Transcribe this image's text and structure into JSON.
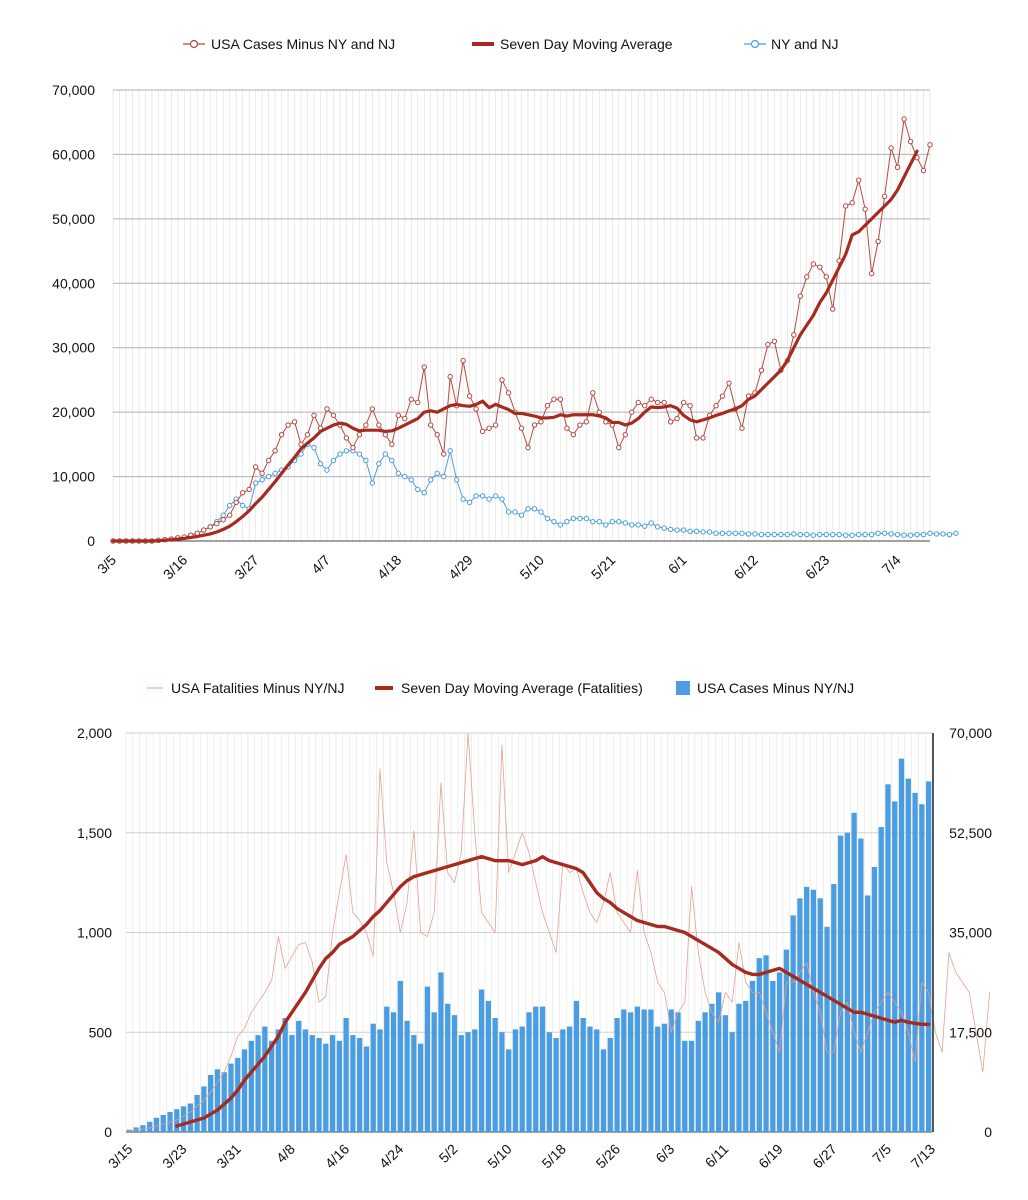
{
  "chart_data": [
    {
      "type": "line",
      "x_start": "3/5",
      "x_tick_labels": [
        "3/5",
        "3/16",
        "3/27",
        "4/7",
        "4/18",
        "4/29",
        "5/10",
        "5/21",
        "6/1",
        "6/12",
        "6/23",
        "7/4"
      ],
      "y_tick_labels": [
        "0",
        "10,000",
        "20,000",
        "30,000",
        "40,000",
        "50,000",
        "60,000",
        "70,000"
      ],
      "ylim": [
        0,
        70000
      ],
      "grid": true,
      "legend_position": "top",
      "series": [
        {
          "name": "USA Cases Minus NY and NJ",
          "style": "line-markers",
          "color": "#b5493d",
          "values": [
            0,
            0,
            0,
            0,
            0,
            0,
            0,
            100,
            200,
            300,
            500,
            600,
            900,
            1200,
            1700,
            2200,
            2700,
            3300,
            4000,
            6000,
            7500,
            8000,
            11500,
            10500,
            12500,
            14000,
            16500,
            18000,
            18500,
            15000,
            16500,
            19500,
            17500,
            20500,
            19500,
            18000,
            16000,
            14500,
            16500,
            18000,
            20500,
            18000,
            16500,
            15000,
            19500,
            19000,
            22000,
            21500,
            27000,
            18000,
            16500,
            13500,
            25500,
            21000,
            28000,
            22500,
            20500,
            17000,
            17500,
            18000,
            25000,
            23000,
            20000,
            17500,
            14500,
            18000,
            18500,
            21000,
            22000,
            22000,
            17500,
            16500,
            18000,
            18500,
            23000,
            20000,
            18500,
            18000,
            14500,
            16500,
            20000,
            21500,
            21000,
            22000,
            21500,
            21500,
            18500,
            19000,
            21500,
            21000,
            16000,
            16000,
            19500,
            21000,
            22500,
            24500,
            20500,
            17500,
            22500,
            23000,
            26500,
            30500,
            31000,
            26500,
            28000,
            32000,
            38000,
            41000,
            43000,
            42500,
            41000,
            36000,
            43500,
            52000,
            52500,
            56000,
            51500,
            41500,
            46500,
            53500,
            61000,
            58000,
            65500,
            62000,
            59500,
            57500,
            61500
          ]
        },
        {
          "name": "Seven Day Moving Average",
          "style": "thick-line",
          "color": "#a52a1f",
          "values": [
            0,
            0,
            0,
            0,
            0,
            0,
            0,
            50,
            120,
            200,
            300,
            400,
            550,
            700,
            900,
            1100,
            1400,
            1800,
            2300,
            3000,
            3800,
            4700,
            5800,
            6800,
            8000,
            9200,
            10500,
            11800,
            13000,
            14300,
            15200,
            16000,
            17000,
            17500,
            18000,
            18300,
            18100,
            17500,
            17100,
            17200,
            17200,
            17200,
            17000,
            17100,
            17500,
            18000,
            18500,
            19000,
            20000,
            20200,
            20000,
            20500,
            21000,
            21200,
            21000,
            20900,
            21200,
            21700,
            20700,
            21200,
            20800,
            20400,
            19800,
            19800,
            19600,
            19400,
            19100,
            19100,
            19200,
            19600,
            19400,
            19600,
            19600,
            19600,
            19600,
            19400,
            19100,
            18400,
            18400,
            18000,
            18300,
            19000,
            20000,
            20800,
            20700,
            20800,
            21000,
            20600,
            19500,
            18800,
            18500,
            18800,
            19100,
            19500,
            19800,
            20200,
            20500,
            21000,
            22000,
            22500,
            23500,
            24500,
            25500,
            26500,
            28000,
            30000,
            32000,
            33500,
            35000,
            37000,
            38500,
            40500,
            42500,
            44500,
            47500,
            48000,
            49000,
            50000,
            51000,
            52000,
            53000,
            54500,
            56500,
            58500,
            60500
          ]
        },
        {
          "name": "NY and NJ",
          "style": "line-markers",
          "color": "#4a9de0",
          "values": [
            0,
            0,
            0,
            0,
            0,
            0,
            0,
            100,
            200,
            300,
            500,
            600,
            900,
            1200,
            1700,
            2200,
            3000,
            4000,
            5500,
            6500,
            5500,
            5000,
            9000,
            9500,
            10000,
            10500,
            11000,
            11500,
            12500,
            13500,
            15000,
            14500,
            12000,
            11000,
            12500,
            13500,
            14000,
            14000,
            13500,
            12500,
            9000,
            12000,
            13500,
            12500,
            10500,
            10000,
            9500,
            8000,
            7500,
            9500,
            10500,
            10000,
            14000,
            9500,
            6500,
            6000,
            7000,
            7000,
            6500,
            7000,
            6500,
            4500,
            4500,
            4000,
            5000,
            5000,
            4500,
            3500,
            3000,
            2500,
            3000,
            3500,
            3500,
            3500,
            3000,
            3000,
            2500,
            3000,
            3000,
            2800,
            2500,
            2500,
            2300,
            2800,
            2200,
            2000,
            1800,
            1700,
            1700,
            1500,
            1500,
            1400,
            1400,
            1200,
            1200,
            1200,
            1200,
            1200,
            1100,
            1100,
            1000,
            1000,
            1000,
            1000,
            1000,
            1100,
            1000,
            1000,
            900,
            1000,
            1000,
            1000,
            1000,
            900,
            900,
            1000,
            1000,
            1000,
            1200,
            1200,
            1100,
            1000,
            900,
            900,
            1000,
            1000,
            1200,
            1100,
            1100,
            1000,
            1200
          ]
        }
      ]
    },
    {
      "type": "bar",
      "x_start": "3/15",
      "x_tick_labels": [
        "3/15",
        "3/23",
        "3/31",
        "4/8",
        "4/16",
        "4/24",
        "5/2",
        "5/10",
        "5/18",
        "5/26",
        "6/3",
        "6/11",
        "6/19",
        "6/27",
        "7/5",
        "7/13"
      ],
      "y_left_tick_labels": [
        "0",
        "500",
        "1,000",
        "1,500",
        "2,000"
      ],
      "y_right_tick_labels": [
        "0",
        "17,500",
        "35,000",
        "52,500",
        "70,000"
      ],
      "ylim_left": [
        0,
        2000
      ],
      "ylim_right": [
        0,
        70000
      ],
      "grid": true,
      "legend_position": "top",
      "series": [
        {
          "name": "USA Fatalities Minus NY/NJ",
          "style": "thin-line",
          "axis": "left",
          "color": "#e8a090",
          "values": [
            5,
            10,
            15,
            20,
            30,
            40,
            50,
            60,
            80,
            100,
            130,
            160,
            200,
            250,
            300,
            380,
            480,
            520,
            600,
            650,
            700,
            760,
            980,
            820,
            880,
            940,
            950,
            850,
            650,
            680,
            1000,
            1200,
            1390,
            1100,
            1060,
            1000,
            880,
            1820,
            1350,
            1200,
            1000,
            1150,
            1510,
            1000,
            980,
            1100,
            1750,
            1300,
            1250,
            1400,
            2000,
            1500,
            1100,
            1050,
            1000,
            1940,
            1300,
            1400,
            1500,
            1400,
            1250,
            1100,
            1000,
            900,
            1350,
            1300,
            1320,
            1200,
            1100,
            1050,
            1150,
            1300,
            1100,
            1050,
            1000,
            1310,
            1000,
            900,
            750,
            700,
            500,
            600,
            650,
            1230,
            900,
            700,
            600,
            550,
            700,
            650,
            950,
            750,
            700,
            700,
            600,
            500,
            400,
            750,
            750,
            800,
            850,
            700,
            600,
            400,
            400,
            600,
            650,
            500,
            400,
            500,
            600,
            650,
            700,
            650,
            600,
            500,
            350,
            750,
            700,
            500,
            400,
            900,
            800,
            750,
            700,
            500,
            300,
            700
          ]
        },
        {
          "name": "Seven Day Moving Average (Fatalities)",
          "style": "thick-line",
          "axis": "left",
          "color": "#a52a1f",
          "values": [
            30,
            40,
            50,
            60,
            70,
            90,
            110,
            140,
            170,
            210,
            260,
            300,
            340,
            380,
            430,
            480,
            550,
            600,
            650,
            700,
            760,
            820,
            870,
            900,
            940,
            960,
            980,
            1010,
            1040,
            1080,
            1110,
            1150,
            1190,
            1230,
            1260,
            1280,
            1290,
            1300,
            1310,
            1320,
            1330,
            1340,
            1350,
            1360,
            1370,
            1380,
            1370,
            1360,
            1360,
            1360,
            1350,
            1340,
            1350,
            1360,
            1380,
            1360,
            1350,
            1340,
            1330,
            1320,
            1300,
            1250,
            1200,
            1170,
            1150,
            1120,
            1100,
            1080,
            1060,
            1050,
            1040,
            1030,
            1030,
            1020,
            1010,
            1000,
            980,
            960,
            940,
            920,
            900,
            870,
            840,
            820,
            800,
            790,
            790,
            800,
            810,
            820,
            800,
            780,
            760,
            740,
            720,
            700,
            680,
            660,
            640,
            620,
            600,
            600,
            590,
            580,
            570,
            560,
            550,
            560,
            550,
            545,
            540,
            540,
            535,
            530,
            525,
            520,
            520,
            510,
            500,
            490,
            480,
            480,
            470,
            470,
            520,
            560,
            600,
            650,
            680
          ]
        },
        {
          "name": "USA Cases Minus NY/NJ",
          "style": "bars",
          "axis": "right",
          "color": "#4a9de0",
          "values": [
            400,
            800,
            1200,
            1800,
            2500,
            3000,
            3500,
            4000,
            4500,
            5000,
            6500,
            8000,
            10000,
            11000,
            10500,
            12000,
            13000,
            14500,
            16000,
            17000,
            18500,
            16000,
            18000,
            20000,
            17000,
            19500,
            18000,
            17000,
            16500,
            15500,
            17000,
            16000,
            20000,
            17000,
            16500,
            15000,
            19000,
            18000,
            22000,
            21000,
            26500,
            19500,
            17000,
            15500,
            25500,
            21000,
            28000,
            22500,
            20500,
            17000,
            17500,
            18000,
            25000,
            23000,
            20000,
            17500,
            14500,
            18000,
            18500,
            21000,
            22000,
            22000,
            17500,
            16500,
            18000,
            18500,
            23000,
            20000,
            18500,
            18000,
            14500,
            16500,
            20000,
            21500,
            21000,
            22000,
            21500,
            21500,
            18500,
            19000,
            21500,
            21000,
            16000,
            16000,
            19500,
            21000,
            22500,
            24500,
            20500,
            17500,
            22500,
            23000,
            26500,
            30500,
            31000,
            26500,
            28000,
            32000,
            38000,
            41000,
            43000,
            42500,
            41000,
            36000,
            43500,
            52000,
            52500,
            56000,
            51500,
            41500,
            46500,
            53500,
            61000,
            58000,
            65500,
            62000,
            59500,
            57500,
            61500
          ]
        }
      ]
    }
  ]
}
